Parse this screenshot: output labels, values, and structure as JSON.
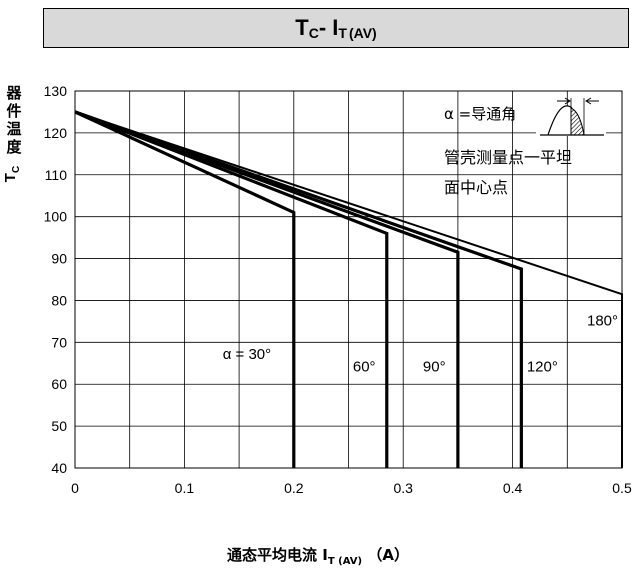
{
  "title": {
    "main": "T",
    "sub1": "C",
    "sep": "- I",
    "sub2": "T",
    "paren": "(AV)"
  },
  "ylabel": {
    "chars": [
      "器",
      "件",
      "温",
      "度"
    ],
    "symbol": "T",
    "sub": "C"
  },
  "xlabel": {
    "text": "通态平均电流 I",
    "sub": "T (AV)",
    "unit": "  （A）"
  },
  "chart_data": {
    "type": "line",
    "xlim": [
      0,
      0.5
    ],
    "ylim": [
      40,
      130
    ],
    "xticks": [
      0,
      0.1,
      0.2,
      0.3,
      0.4,
      0.5
    ],
    "xtick_labels": [
      "0",
      "0.1",
      "0.2",
      "0.3",
      "0.4",
      "0.5"
    ],
    "yticks": [
      40,
      50,
      60,
      70,
      80,
      90,
      100,
      110,
      120,
      130
    ],
    "ytick_labels": [
      "40",
      "50",
      "60",
      "70",
      "80",
      "90",
      "100",
      "110",
      "120",
      "130"
    ],
    "grid": true,
    "series": [
      {
        "name": "30°",
        "label": "α = 30°",
        "label_at": [
          0.135,
          66
        ],
        "points": [
          [
            0,
            125
          ],
          [
            0.2,
            101
          ],
          [
            0.2,
            40
          ]
        ]
      },
      {
        "name": "60°",
        "label": "60°",
        "label_at": [
          0.254,
          63
        ],
        "points": [
          [
            0,
            125
          ],
          [
            0.285,
            96
          ],
          [
            0.285,
            40
          ]
        ]
      },
      {
        "name": "90°",
        "label": "90°",
        "label_at": [
          0.318,
          63
        ],
        "points": [
          [
            0,
            125
          ],
          [
            0.35,
            91.5
          ],
          [
            0.35,
            40
          ]
        ]
      },
      {
        "name": "120°",
        "label": "120°",
        "label_at": [
          0.413,
          63
        ],
        "points": [
          [
            0,
            125
          ],
          [
            0.408,
            87.5
          ],
          [
            0.408,
            40
          ]
        ]
      },
      {
        "name": "180°",
        "label": "180°",
        "label_at": [
          0.468,
          74
        ],
        "points": [
          [
            0,
            125
          ],
          [
            0.5,
            81.5
          ],
          [
            0.5,
            40
          ]
        ]
      }
    ],
    "annotations": {
      "alpha_def": "α =导通角",
      "note_line1": "管壳测量点一平坦",
      "note_line2": "面中心点"
    }
  }
}
